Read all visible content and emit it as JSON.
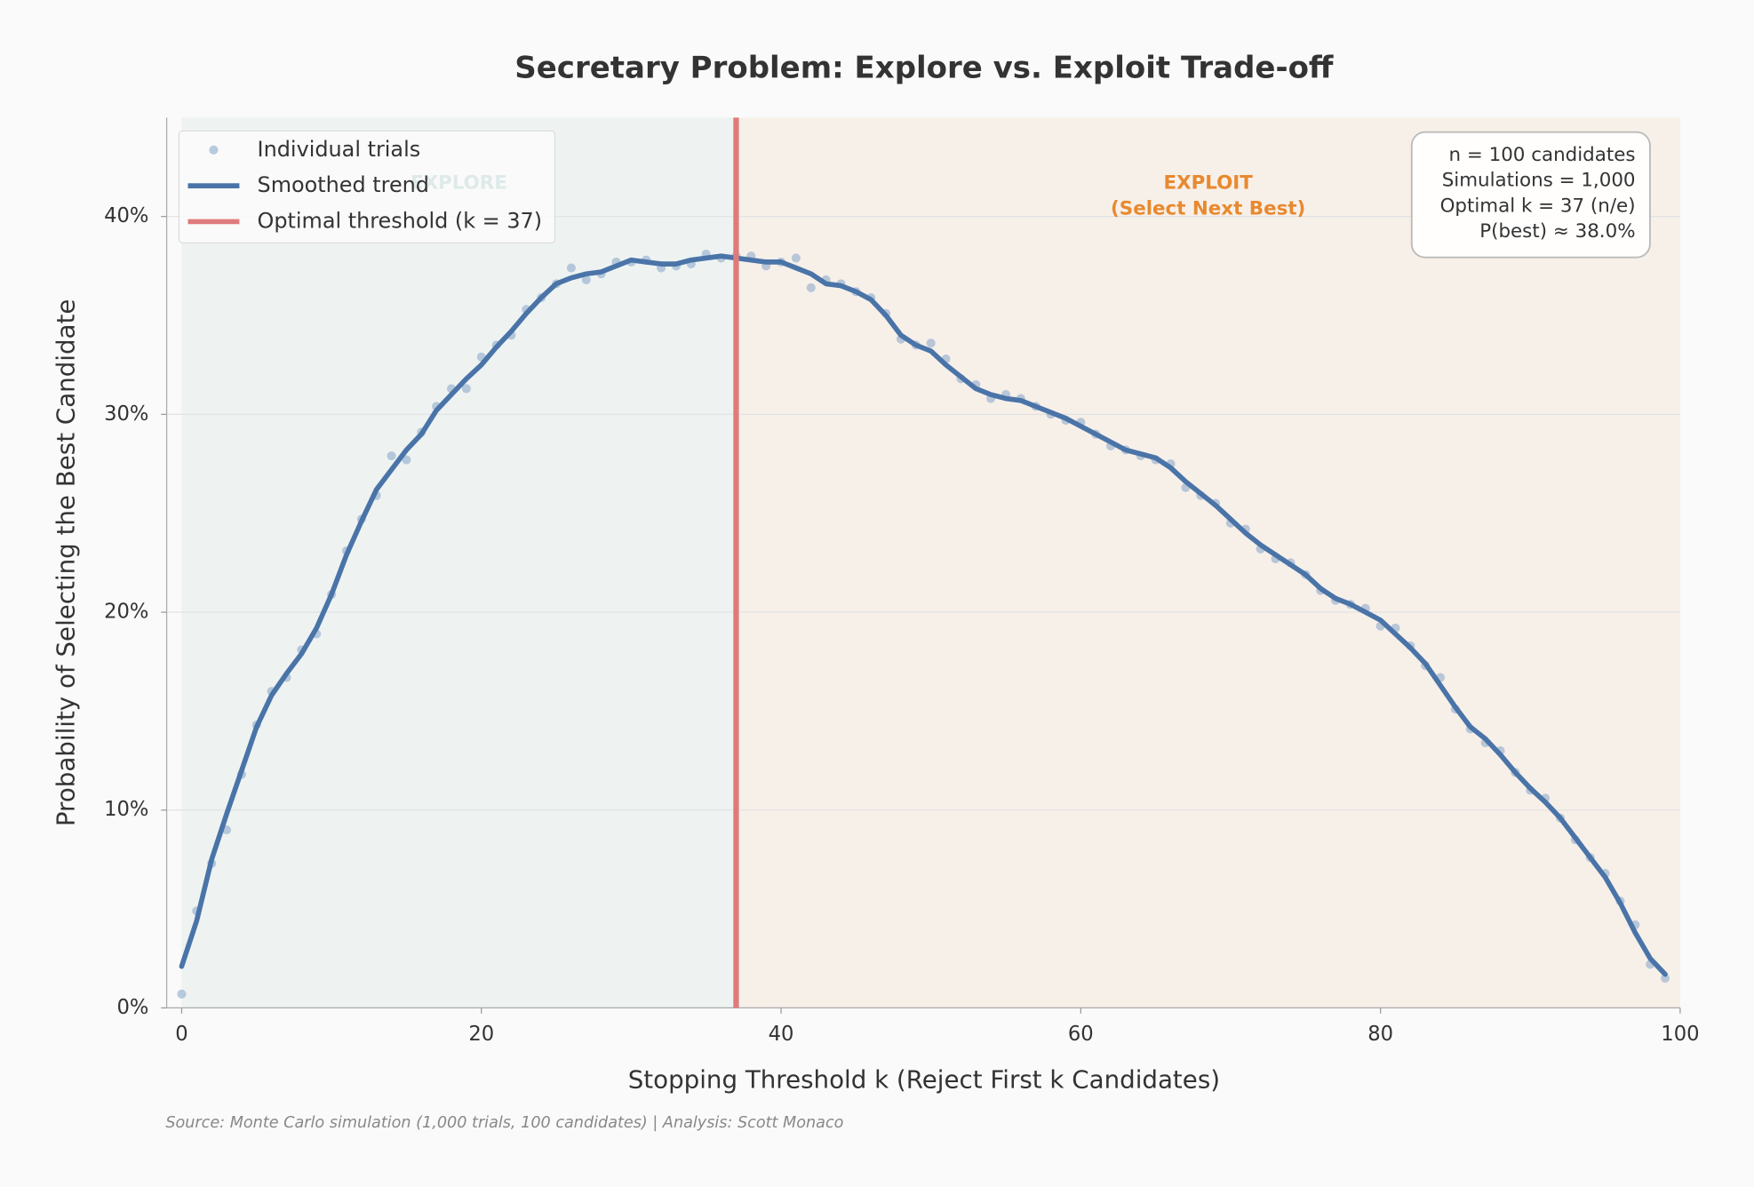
{
  "chart_data": {
    "type": "line",
    "title": "Secretary Problem: Explore vs. Exploit Trade-off",
    "x_label": "Stopping Threshold k (Reject First k Candidates)",
    "y_label": "Probability of Selecting the Best Candidate",
    "source": "Source: Monte Carlo simulation (1,000 trials, 100 candidates) | Analysis: Scott Monaco",
    "x": [
      0,
      1,
      2,
      3,
      4,
      5,
      6,
      7,
      8,
      9,
      10,
      11,
      12,
      13,
      14,
      15,
      16,
      17,
      18,
      19,
      20,
      21,
      22,
      23,
      24,
      25,
      26,
      27,
      28,
      29,
      30,
      31,
      32,
      33,
      34,
      35,
      36,
      37,
      38,
      39,
      40,
      41,
      42,
      43,
      44,
      45,
      46,
      47,
      48,
      49,
      50,
      51,
      52,
      53,
      54,
      55,
      56,
      57,
      58,
      59,
      60,
      61,
      62,
      63,
      64,
      65,
      66,
      67,
      68,
      69,
      70,
      71,
      72,
      73,
      74,
      75,
      76,
      77,
      78,
      79,
      80,
      81,
      82,
      83,
      84,
      85,
      86,
      87,
      88,
      89,
      90,
      91,
      92,
      93,
      94,
      95,
      96,
      97,
      98,
      99
    ],
    "series": [
      {
        "name": "Individual trials",
        "kind": "scatter",
        "color": "#8eaacb",
        "values": [
          0.7,
          4.9,
          7.3,
          9.0,
          11.8,
          14.3,
          16.0,
          16.7,
          18.1,
          18.9,
          20.9,
          23.1,
          24.7,
          25.9,
          27.9,
          27.7,
          29.1,
          30.4,
          31.3,
          31.3,
          32.9,
          33.5,
          34.0,
          35.3,
          35.9,
          36.6,
          37.4,
          36.8,
          37.1,
          37.7,
          37.7,
          37.8,
          37.4,
          37.5,
          37.6,
          38.1,
          37.9,
          38.0,
          38.0,
          37.5,
          37.7,
          37.9,
          36.4,
          36.8,
          36.6,
          36.2,
          35.9,
          35.1,
          33.8,
          33.5,
          33.6,
          32.8,
          31.8,
          31.5,
          30.8,
          31.0,
          30.8,
          30.4,
          30.0,
          29.7,
          29.6,
          29.0,
          28.4,
          28.2,
          27.9,
          27.7,
          27.5,
          26.3,
          25.9,
          25.5,
          24.5,
          24.2,
          23.2,
          22.7,
          22.5,
          21.9,
          21.1,
          20.6,
          20.4,
          20.2,
          19.3,
          19.2,
          18.3,
          17.3,
          16.7,
          15.1,
          14.1,
          13.4,
          13.0,
          11.9,
          11.0,
          10.6,
          9.6,
          8.5,
          7.6,
          6.8,
          5.4,
          4.2,
          2.2,
          1.5
        ]
      },
      {
        "name": "Smoothed trend",
        "kind": "line",
        "color": "#4a74a8",
        "values": [
          2.1,
          4.4,
          7.5,
          9.8,
          12.0,
          14.2,
          15.8,
          16.9,
          17.9,
          19.2,
          20.9,
          22.9,
          24.6,
          26.2,
          27.2,
          28.2,
          29.0,
          30.2,
          31.0,
          31.8,
          32.5,
          33.4,
          34.2,
          35.1,
          35.9,
          36.6,
          36.9,
          37.1,
          37.2,
          37.5,
          37.8,
          37.7,
          37.6,
          37.6,
          37.8,
          37.9,
          38.0,
          37.9,
          37.8,
          37.7,
          37.7,
          37.4,
          37.1,
          36.6,
          36.5,
          36.2,
          35.8,
          35.0,
          34.0,
          33.5,
          33.2,
          32.5,
          31.9,
          31.3,
          31.0,
          30.8,
          30.7,
          30.4,
          30.1,
          29.8,
          29.4,
          29.0,
          28.6,
          28.2,
          28.0,
          27.8,
          27.3,
          26.6,
          26.0,
          25.4,
          24.7,
          24.0,
          23.4,
          22.9,
          22.4,
          21.9,
          21.2,
          20.7,
          20.4,
          20.0,
          19.6,
          18.9,
          18.2,
          17.4,
          16.3,
          15.2,
          14.2,
          13.6,
          12.8,
          11.9,
          11.1,
          10.4,
          9.6,
          8.6,
          7.6,
          6.6,
          5.3,
          3.8,
          2.5,
          1.7
        ]
      }
    ],
    "vline": {
      "name": "Optimal threshold (k = 37)",
      "x": 37,
      "color": "#e07b7b"
    },
    "regions": [
      {
        "from": 0,
        "to": 37,
        "color": "#eef3f2",
        "lines": [
          "EXPLORE"
        ],
        "label_color": "#3d8f86"
      },
      {
        "from": 37,
        "to": 100,
        "color": "#f7f0e9",
        "lines": [
          "EXPLOIT",
          "(Select Next Best)"
        ],
        "label_color": "#e8892f"
      }
    ],
    "info_box": [
      "n = 100 candidates",
      "Simulations = 1,000",
      "Optimal k = 37 (n/e)",
      "P(best) ≈ 38.0%"
    ],
    "xlim": [
      -1,
      100
    ],
    "ylim": [
      0,
      45
    ],
    "xticks": [
      0,
      20,
      40,
      60,
      80,
      100
    ],
    "yticks": [
      {
        "value": 0,
        "label": "0%"
      },
      {
        "value": 10,
        "label": "10%"
      },
      {
        "value": 20,
        "label": "20%"
      },
      {
        "value": 30,
        "label": "30%"
      },
      {
        "value": 40,
        "label": "40%"
      }
    ],
    "grid": true,
    "legend": "upper left"
  }
}
